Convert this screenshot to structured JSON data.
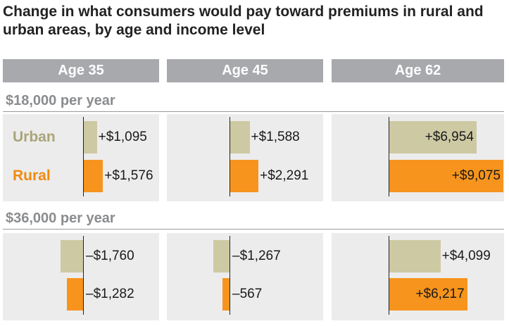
{
  "chart_data": {
    "type": "bar",
    "title": "Change in what consumers would pay toward premiums in rural and urban areas, by age and income level",
    "ages": [
      "Age 35",
      "Age 45",
      "Age 62"
    ],
    "series_names": [
      "Urban",
      "Rural"
    ],
    "colors": {
      "Urban": "#cdc9a3",
      "Rural": "#f7941d"
    },
    "groups": [
      {
        "label": "$18,000 per year",
        "series": [
          {
            "name": "Urban",
            "values": [
              1095,
              1588,
              6954
            ],
            "labels": [
              "+$1,095",
              "+$1,588",
              "+$6,954"
            ]
          },
          {
            "name": "Rural",
            "values": [
              1576,
              2291,
              9075
            ],
            "labels": [
              "+$1,576",
              "+$2,291",
              "+$9,075"
            ]
          }
        ]
      },
      {
        "label": "$36,000 per year",
        "series": [
          {
            "name": "Urban",
            "values": [
              -1760,
              -1267,
              4099
            ],
            "labels": [
              "–$1,760",
              "–$1,267",
              "+$4,099"
            ]
          },
          {
            "name": "Rural",
            "values": [
              -1282,
              -567,
              6217
            ],
            "labels": [
              "–$1,282",
              "–567",
              "+$6,217"
            ]
          }
        ]
      }
    ]
  }
}
